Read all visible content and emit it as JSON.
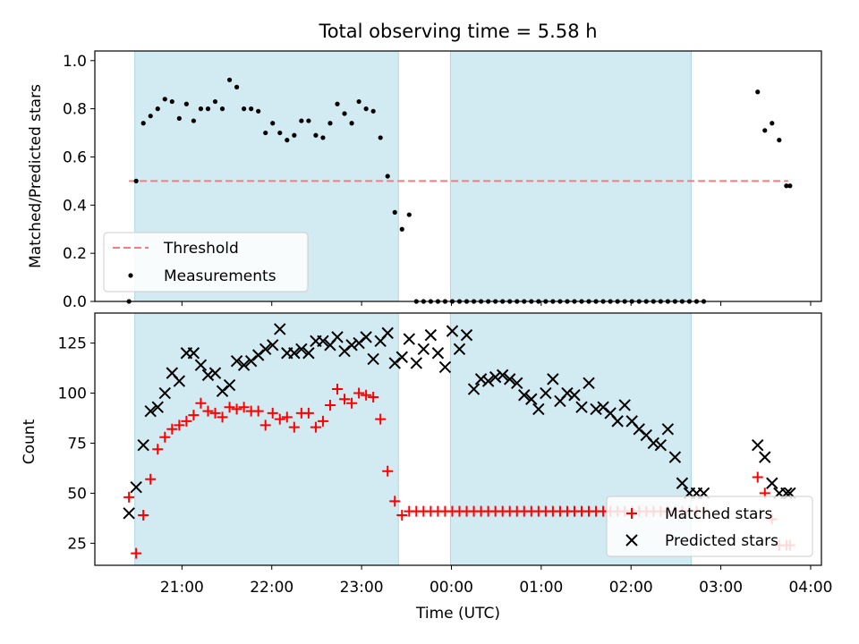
{
  "chart_data": [
    {
      "type": "scatter",
      "title": "Total observing time = 5.58 h",
      "ylabel": "Matched/Predicted stars",
      "xlabel": "",
      "ylim": [
        0,
        1.04
      ],
      "yticks": [
        "0.0",
        "0.2",
        "0.4",
        "0.6",
        "0.8",
        "1.0"
      ],
      "xticks": [
        "21:00",
        "22:00",
        "23:00",
        "00:00",
        "01:00",
        "02:00",
        "03:00",
        "04:00"
      ],
      "x_unit": "hours since 20:00 UTC",
      "xlim": [
        0.03,
        8.12
      ],
      "shaded_intervals": [
        [
          0.475,
          3.41
        ],
        [
          3.99,
          6.67
        ]
      ],
      "threshold": {
        "name": "Threshold",
        "value": 0.5,
        "x_range": [
          0.41,
          7.75
        ],
        "color": "#f08080"
      },
      "legend": {
        "position": "lower-left",
        "entries": [
          "Threshold",
          "Measurements"
        ]
      },
      "series": [
        {
          "name": "Measurements",
          "color": "#000000",
          "x": [
            0.41,
            0.49,
            0.57,
            0.65,
            0.73,
            0.81,
            0.89,
            0.97,
            1.05,
            1.13,
            1.21,
            1.29,
            1.37,
            1.45,
            1.53,
            1.61,
            1.69,
            1.77,
            1.85,
            1.93,
            2.01,
            2.09,
            2.17,
            2.25,
            2.33,
            2.41,
            2.49,
            2.57,
            2.65,
            2.73,
            2.81,
            2.89,
            2.97,
            3.05,
            3.13,
            3.21,
            3.29,
            3.37,
            3.45,
            3.53,
            3.61,
            3.69,
            3.77,
            3.85,
            3.93,
            4.01,
            4.09,
            4.17,
            4.25,
            4.33,
            4.41,
            4.49,
            4.57,
            4.65,
            4.73,
            4.81,
            4.89,
            4.97,
            5.05,
            5.13,
            5.21,
            5.29,
            5.37,
            5.45,
            5.53,
            5.61,
            5.69,
            5.77,
            5.85,
            5.93,
            6.01,
            6.09,
            6.17,
            6.25,
            6.33,
            6.41,
            6.49,
            6.57,
            6.65,
            6.73,
            6.81,
            7.41,
            7.49,
            7.57,
            7.65,
            7.73,
            7.77
          ],
          "y": [
            0.0,
            0.5,
            0.74,
            0.77,
            0.8,
            0.84,
            0.83,
            0.76,
            0.82,
            0.75,
            0.8,
            0.8,
            0.83,
            0.8,
            0.92,
            0.89,
            0.8,
            0.8,
            0.79,
            0.7,
            0.74,
            0.7,
            0.67,
            0.69,
            0.75,
            0.75,
            0.69,
            0.68,
            0.74,
            0.82,
            0.78,
            0.74,
            0.83,
            0.8,
            0.79,
            0.68,
            0.52,
            0.37,
            0.3,
            0.36,
            0.0,
            0.0,
            0.0,
            0.0,
            0.0,
            0.0,
            0.0,
            0.0,
            0.0,
            0.0,
            0.0,
            0.0,
            0.0,
            0.0,
            0.0,
            0.0,
            0.0,
            0.0,
            0.0,
            0.0,
            0.0,
            0.0,
            0.0,
            0.0,
            0.0,
            0.0,
            0.0,
            0.0,
            0.0,
            0.0,
            0.0,
            0.0,
            0.0,
            0.0,
            0.0,
            0.0,
            0.0,
            0.0,
            0.0,
            0.0,
            0.0,
            0.87,
            0.71,
            0.74,
            0.67,
            0.48,
            0.48
          ]
        }
      ]
    },
    {
      "type": "scatter",
      "title": "",
      "ylabel": "Count",
      "xlabel": "Time (UTC)",
      "ylim": [
        14,
        140
      ],
      "yticks": [
        "25",
        "50",
        "75",
        "100",
        "125"
      ],
      "xticks": [
        "21:00",
        "22:00",
        "23:00",
        "00:00",
        "01:00",
        "02:00",
        "03:00",
        "04:00"
      ],
      "x_unit": "hours since 20:00 UTC",
      "xlim": [
        0.03,
        8.12
      ],
      "shaded_intervals": [
        [
          0.475,
          3.41
        ],
        [
          3.99,
          6.67
        ]
      ],
      "legend": {
        "position": "lower-right",
        "entries": [
          "Matched stars",
          "Predicted stars"
        ]
      },
      "series": [
        {
          "name": "Matched stars",
          "marker": "+",
          "color": "#ff0000",
          "x": [
            0.41,
            0.49,
            0.57,
            0.65,
            0.73,
            0.81,
            0.89,
            0.97,
            1.05,
            1.13,
            1.21,
            1.29,
            1.37,
            1.45,
            1.53,
            1.61,
            1.69,
            1.77,
            1.85,
            1.93,
            2.01,
            2.09,
            2.17,
            2.25,
            2.33,
            2.41,
            2.49,
            2.57,
            2.65,
            2.73,
            2.81,
            2.89,
            2.97,
            3.05,
            3.13,
            3.21,
            3.29,
            3.37,
            3.45,
            3.53,
            3.61,
            3.69,
            3.77,
            3.85,
            3.93,
            4.01,
            4.09,
            4.17,
            4.25,
            4.33,
            4.41,
            4.49,
            4.57,
            4.65,
            4.73,
            4.81,
            4.89,
            4.97,
            5.05,
            5.13,
            5.21,
            5.29,
            5.37,
            5.45,
            5.53,
            5.61,
            5.69,
            5.77,
            5.85,
            5.93,
            6.01,
            6.09,
            6.17,
            6.25,
            6.33,
            6.41,
            6.49,
            6.57,
            6.65,
            6.73,
            6.81,
            7.41,
            7.49,
            7.57,
            7.65,
            7.73,
            7.77
          ],
          "y": [
            48,
            20,
            39,
            57,
            72,
            78,
            82,
            84,
            86,
            89,
            95,
            91,
            90,
            88,
            93,
            92,
            93,
            91,
            91,
            84,
            90,
            87,
            88,
            83,
            90,
            90,
            83,
            86,
            94,
            102,
            97,
            95,
            100,
            99,
            98,
            87,
            61,
            46,
            39,
            41,
            41,
            41,
            41,
            41,
            41,
            41,
            41,
            41,
            41,
            41,
            41,
            41,
            41,
            41,
            41,
            41,
            41,
            41,
            41,
            41,
            41,
            41,
            41,
            41,
            41,
            41,
            41,
            41,
            41,
            41,
            41,
            41,
            41,
            41,
            41,
            41,
            41,
            41,
            41,
            41,
            41,
            58,
            50,
            37,
            24,
            24,
            24
          ]
        },
        {
          "name": "Predicted stars",
          "marker": "x",
          "color": "#000000",
          "x": [
            0.41,
            0.49,
            0.57,
            0.65,
            0.73,
            0.81,
            0.89,
            0.97,
            1.05,
            1.13,
            1.21,
            1.29,
            1.37,
            1.45,
            1.53,
            1.61,
            1.69,
            1.77,
            1.85,
            1.93,
            2.01,
            2.09,
            2.17,
            2.25,
            2.33,
            2.41,
            2.49,
            2.57,
            2.65,
            2.73,
            2.81,
            2.89,
            2.97,
            3.05,
            3.13,
            3.21,
            3.29,
            3.37,
            3.45,
            3.53,
            3.61,
            3.69,
            3.77,
            3.85,
            3.93,
            4.01,
            4.09,
            4.17,
            4.25,
            4.33,
            4.41,
            4.49,
            4.57,
            4.65,
            4.73,
            4.81,
            4.89,
            4.97,
            5.05,
            5.13,
            5.21,
            5.29,
            5.37,
            5.45,
            5.53,
            5.61,
            5.69,
            5.77,
            5.85,
            5.93,
            6.01,
            6.09,
            6.17,
            6.25,
            6.33,
            6.41,
            6.49,
            6.57,
            6.65,
            6.73,
            6.81,
            7.41,
            7.49,
            7.57,
            7.65,
            7.73,
            7.77
          ],
          "y": [
            40,
            53,
            74,
            91,
            93,
            100,
            110,
            106,
            120,
            120,
            114,
            109,
            110,
            101,
            104,
            116,
            114,
            116,
            119,
            122,
            124,
            132,
            120,
            120,
            122,
            120,
            126,
            126,
            124,
            128,
            121,
            124,
            125,
            128,
            117,
            126,
            130,
            115,
            118,
            127,
            115,
            122,
            129,
            120,
            113,
            131,
            122,
            129,
            102,
            107,
            106,
            108,
            109,
            107,
            105,
            99,
            97,
            92,
            100,
            107,
            96,
            100,
            99,
            93,
            105,
            92,
            93,
            90,
            86,
            94,
            86,
            82,
            79,
            75,
            74,
            82,
            68,
            55,
            50,
            50,
            50,
            74,
            68,
            55,
            50,
            50,
            50
          ]
        }
      ]
    }
  ],
  "colors": {
    "shade": "#add8e6",
    "threshold": "#f08080",
    "matched": "#ff0000",
    "predicted": "#000000",
    "measurement": "#000000"
  }
}
